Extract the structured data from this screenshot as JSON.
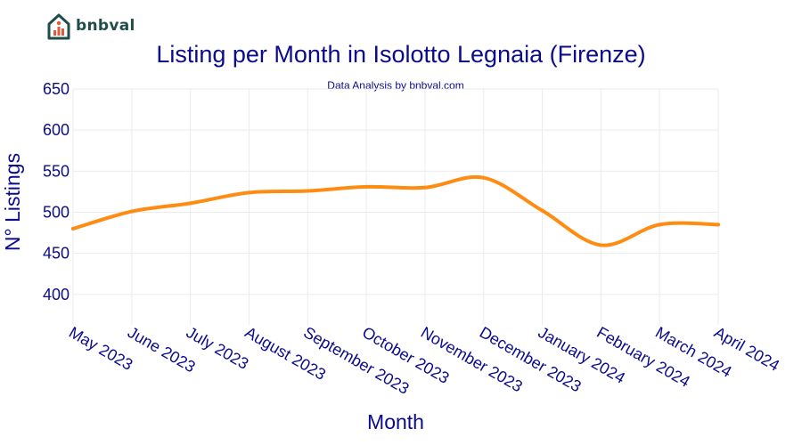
{
  "logo": {
    "text": "bnbval",
    "icon": "house-chart-icon",
    "color": "#1f4e4a",
    "accent": "#e05a3a"
  },
  "chart_data": {
    "type": "line",
    "title": "Listing per Month in Isolotto Legnaia (Firenze)",
    "subtitle": "Data Analysis by bnbval.com",
    "xlabel": "Month",
    "ylabel": "N° Listings",
    "categories": [
      "May 2023",
      "June 2023",
      "July 2023",
      "August 2023",
      "September 2023",
      "October 2023",
      "November 2023",
      "December 2023",
      "January 2024",
      "February 2024",
      "March 2024",
      "April 2024"
    ],
    "series": [
      {
        "name": "Listings",
        "values": [
          480,
          501,
          511,
          524,
          526,
          531,
          530,
          542,
          502,
          460,
          485,
          485
        ],
        "color": "#ff8c12"
      }
    ],
    "ylim": [
      363,
      650
    ],
    "yticks": [
      400,
      450,
      500,
      550,
      600,
      650
    ],
    "grid": true,
    "legend": "none"
  }
}
